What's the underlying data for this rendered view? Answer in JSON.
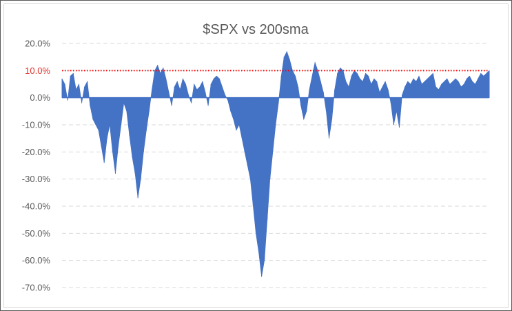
{
  "chart_data": {
    "type": "area",
    "title": "$SPX vs 200sma",
    "xlabel": "",
    "ylabel": "",
    "ylim": [
      -70,
      20
    ],
    "y_ticks": [
      20,
      10,
      0,
      -10,
      -20,
      -30,
      -40,
      -50,
      -60,
      -70
    ],
    "y_tick_labels": [
      "20.0%",
      "10.0%",
      "0.0%",
      "-10.0%",
      "-20.0%",
      "-30.0%",
      "-40.0%",
      "-50.0%",
      "-60.0%",
      "-70.0%"
    ],
    "y_format": "percent",
    "grid": "horizontal dashed",
    "reference_line": {
      "value": 10,
      "color": "#ff0000",
      "style": "dotted"
    },
    "series": [
      {
        "color": "#4472c4",
        "x_index_range": [
          0,
          152
        ],
        "values": [
          7,
          5,
          -1,
          8,
          9,
          3,
          5,
          -2,
          4,
          6,
          -3,
          -8,
          -10,
          -12,
          -18,
          -24,
          -15,
          -10,
          -20,
          -28,
          -18,
          -10,
          -2,
          -5,
          -14,
          -22,
          -28,
          -37,
          -30,
          -20,
          -12,
          -5,
          3,
          10,
          12,
          9,
          11,
          7,
          2,
          -3,
          4,
          6,
          3,
          7,
          5,
          1,
          -2,
          5,
          3,
          4,
          6,
          2,
          -3,
          5,
          7,
          8,
          7,
          4,
          1,
          -1,
          -5,
          -8,
          -12,
          -10,
          -15,
          -20,
          -25,
          -30,
          -40,
          -50,
          -57,
          -66,
          -60,
          -45,
          -30,
          -20,
          -10,
          -2,
          8,
          15,
          17,
          14,
          10,
          8,
          4,
          -3,
          -8,
          -5,
          3,
          8,
          13,
          10,
          6,
          2,
          -5,
          -15,
          -8,
          3,
          9,
          11,
          10,
          6,
          4,
          8,
          10,
          9,
          7,
          6,
          9,
          8,
          5,
          7,
          6,
          2,
          4,
          6,
          3,
          -2,
          -10,
          -5,
          -11,
          1,
          4,
          6,
          5,
          7,
          6,
          8,
          5,
          6,
          7,
          8,
          9,
          4,
          3,
          5,
          6,
          7,
          5,
          6,
          7,
          6,
          4,
          5,
          7,
          8,
          6,
          5,
          7,
          9,
          8,
          9,
          10
        ]
      }
    ]
  }
}
